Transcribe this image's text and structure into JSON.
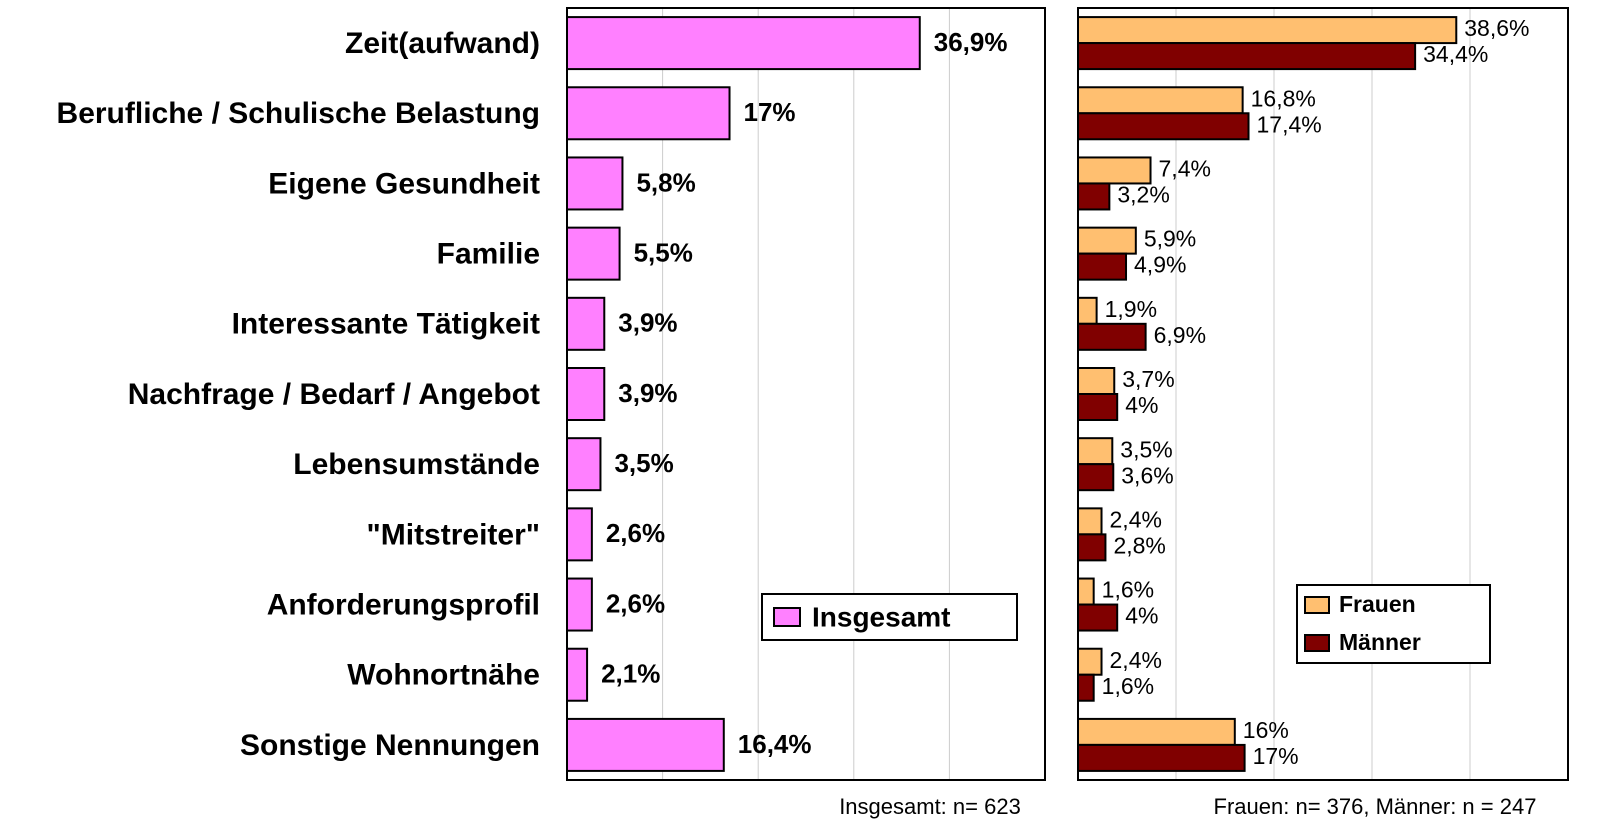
{
  "chart_data": [
    {
      "type": "bar",
      "orientation": "horizontal",
      "categories": [
        "Zeit(aufwand)",
        "Berufliche / Schulische Belastung",
        "Eigene Gesundheit",
        "Familie",
        "Interessante Tätigkeit",
        "Nachfrage / Bedarf / Angebot",
        "Lebensumstände",
        "\"Mitstreiter\"",
        "Anforderungsprofil",
        "Wohnortnähe",
        "Sonstige Nennungen"
      ],
      "series": [
        {
          "name": "Insgesamt",
          "color": "#ff80ff",
          "values": [
            36.9,
            17,
            5.8,
            5.5,
            3.9,
            3.9,
            3.5,
            2.6,
            2.6,
            2.1,
            16.4
          ],
          "value_labels": [
            "36,9%",
            "17%",
            "5,8%",
            "5,5%",
            "3,9%",
            "3,9%",
            "3,5%",
            "2,6%",
            "2,6%",
            "2,1%",
            "16,4%"
          ]
        }
      ],
      "xlim": [
        0,
        50
      ],
      "xticks": [
        10,
        20,
        30,
        40
      ],
      "grid": true,
      "legend": "lower right",
      "footnote": "Insgesamt: n= 623"
    },
    {
      "type": "bar",
      "orientation": "horizontal",
      "series": [
        {
          "name": "Frauen",
          "color": "#ffbf70",
          "values": [
            38.6,
            16.8,
            7.4,
            5.9,
            1.9,
            3.7,
            3.5,
            2.4,
            1.6,
            2.4,
            16
          ],
          "value_labels": [
            "38,6%",
            "16,8%",
            "7,4%",
            "5,9%",
            "1,9%",
            "3,7%",
            "3,5%",
            "2,4%",
            "1,6%",
            "2,4%",
            "16%"
          ]
        },
        {
          "name": "Männer",
          "color": "#800000",
          "values": [
            34.4,
            17.4,
            3.2,
            4.9,
            6.9,
            4,
            3.6,
            2.8,
            4,
            1.6,
            17
          ],
          "value_labels": [
            "34,4%",
            "17,4%",
            "3,2%",
            "4,9%",
            "6,9%",
            "4%",
            "3,6%",
            "2,8%",
            "4%",
            "1,6%",
            "17%"
          ]
        }
      ],
      "xlim": [
        0,
        50
      ],
      "xticks": [
        10,
        20,
        30,
        40
      ],
      "grid": true,
      "legend": "lower right",
      "footnote": "Frauen: n= 376, Männer: n = 247"
    }
  ]
}
